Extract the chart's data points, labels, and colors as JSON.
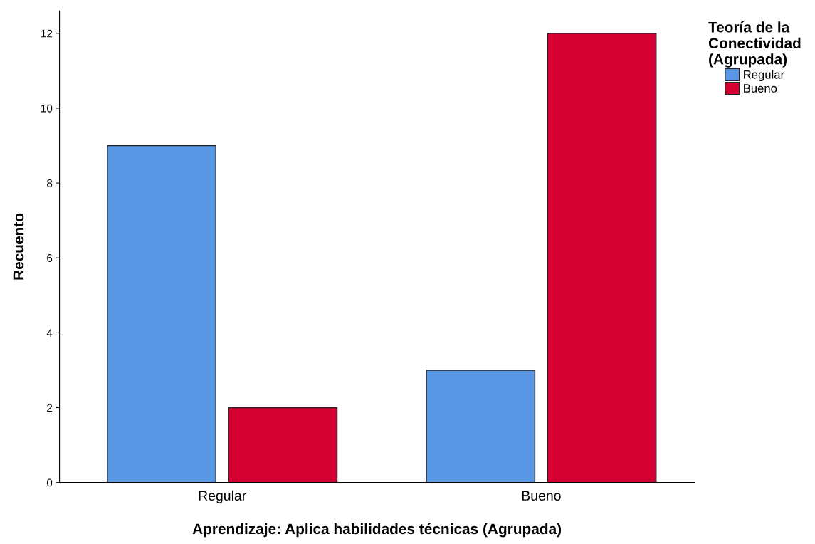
{
  "chart_data": {
    "type": "bar",
    "xlabel": "Aprendizaje: Aplica habilidades técnicas (Agrupada)",
    "ylabel": "Recuento",
    "legend_title": "Teoría de la\nConectividad\n(Agrupada)",
    "categories": [
      "Regular",
      "Bueno"
    ],
    "series": [
      {
        "name": "Regular",
        "color": "#5a97e4",
        "values": [
          9,
          3
        ]
      },
      {
        "name": "Bueno",
        "color": "#d50032",
        "values": [
          2,
          12
        ]
      }
    ],
    "ylim": [
      0,
      12.6
    ],
    "yticks": [
      0,
      2,
      4,
      6,
      8,
      10,
      12
    ],
    "grid": false,
    "legend": "top right"
  }
}
